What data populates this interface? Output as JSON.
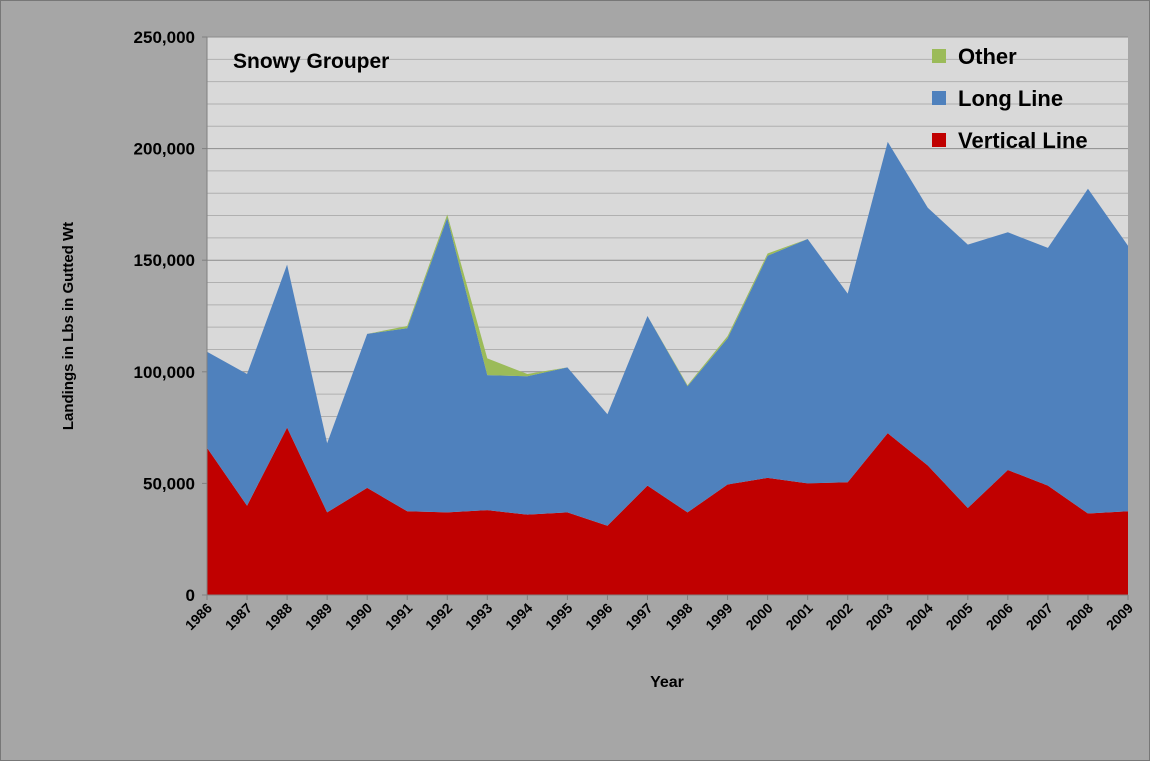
{
  "chart_data": {
    "type": "stacked_area",
    "title": "Snowy Grouper",
    "x_label": "Year",
    "y_label": "Landings in Lbs in Gutted Wt",
    "categories": [
      "1986",
      "1987",
      "1988",
      "1989",
      "1990",
      "1991",
      "1992",
      "1993",
      "1994",
      "1995",
      "1996",
      "1997",
      "1998",
      "1999",
      "2000",
      "2001",
      "2002",
      "2003",
      "2004",
      "2005",
      "2006",
      "2007",
      "2008",
      "2009"
    ],
    "series": [
      {
        "name": "Vertical Line",
        "color": "#c00000",
        "values": [
          66000,
          40000,
          75000,
          37000,
          48000,
          37500,
          37000,
          38000,
          36000,
          37000,
          31000,
          49000,
          37000,
          49500,
          52500,
          50000,
          50500,
          72500,
          58000,
          39000,
          56000,
          49000,
          36500,
          37500
        ]
      },
      {
        "name": "Long Line",
        "color": "#4f81bd",
        "values": [
          43000,
          59000,
          73000,
          31000,
          69000,
          82000,
          132000,
          60500,
          62000,
          65000,
          50000,
          76000,
          56500,
          65500,
          99500,
          109500,
          84500,
          130500,
          115500,
          118000,
          106500,
          106500,
          145500,
          119000
        ]
      },
      {
        "name": "Other",
        "color": "#9bbb59",
        "values": [
          0,
          0,
          0,
          0,
          0,
          1000,
          1500,
          7500,
          1000,
          0,
          0,
          0,
          500,
          1000,
          1000,
          0,
          0,
          0,
          0,
          0,
          0,
          0,
          0,
          0
        ]
      }
    ],
    "ylim": [
      0,
      250000
    ],
    "yticks": [
      0,
      {
        "value": 50000,
        "label": "50,000"
      },
      {
        "value": 100000,
        "label": "100,000"
      },
      {
        "value": 150000,
        "label": "150,000"
      },
      {
        "value": 200000,
        "label": "200,000"
      },
      {
        "value": 250000,
        "label": "250,000"
      }
    ],
    "y_minor_ticks": [
      10000,
      20000,
      30000,
      40000,
      60000,
      70000,
      80000,
      90000,
      110000,
      120000,
      130000,
      140000,
      160000,
      170000,
      180000,
      190000,
      210000,
      220000,
      230000,
      240000
    ],
    "grid": true,
    "legend": "upper right"
  }
}
